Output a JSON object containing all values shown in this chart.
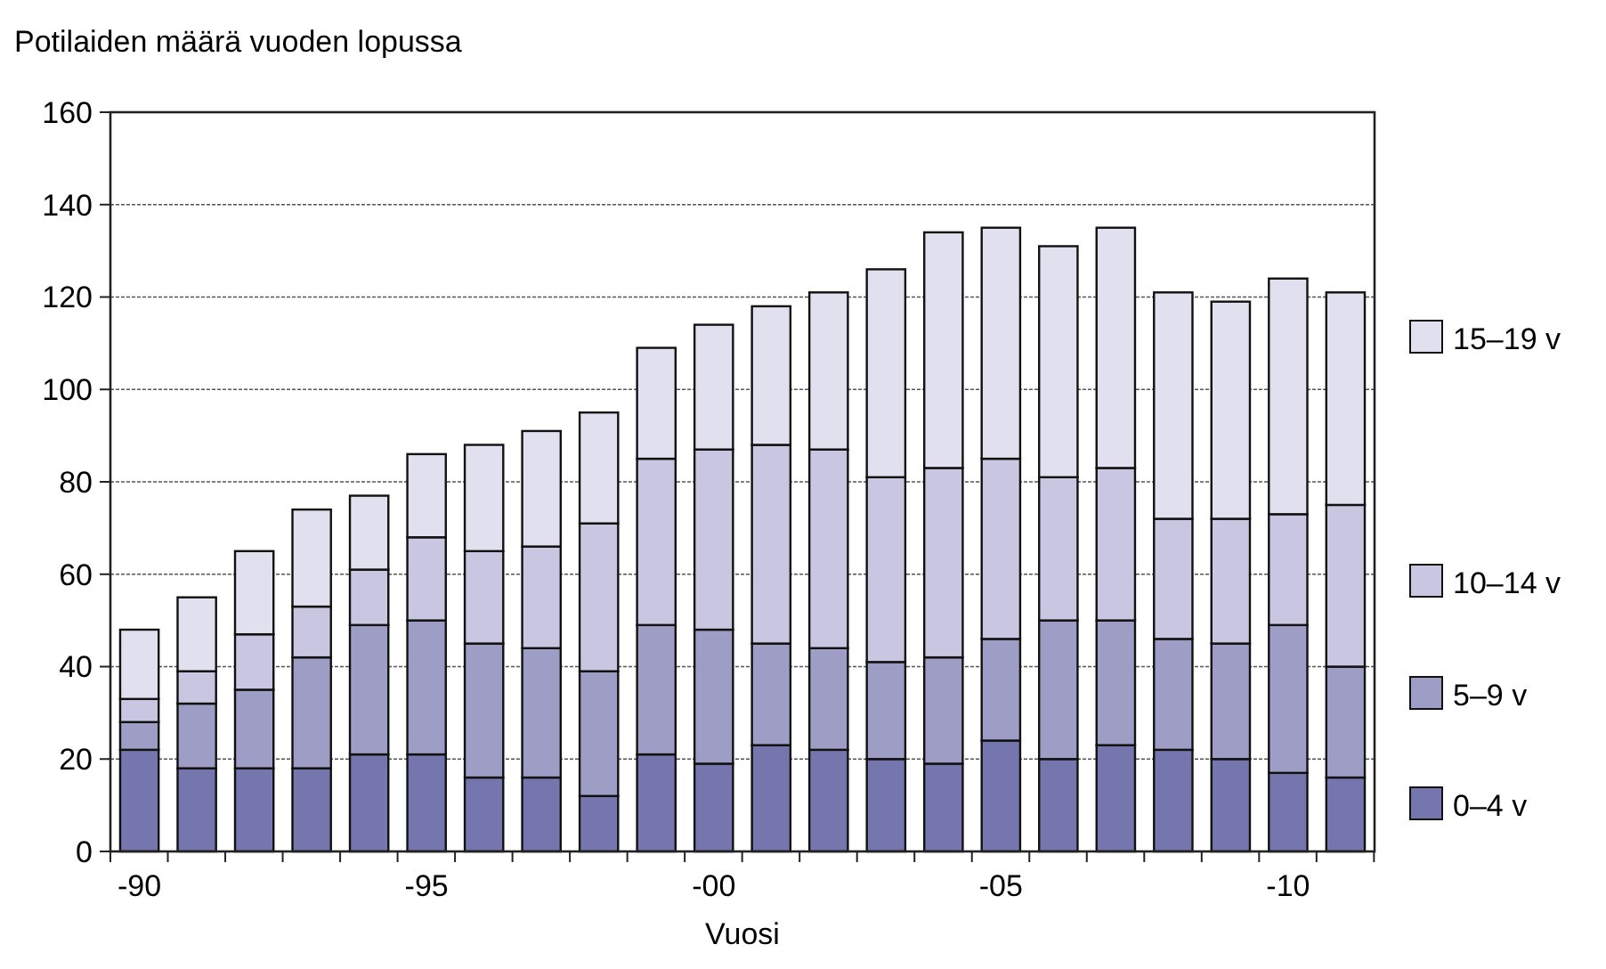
{
  "chart_data": {
    "type": "bar",
    "stacked": true,
    "ylabel": "Potilaiden määrä vuoden lopussa",
    "xlabel": "Vuosi",
    "categories": [
      "-90",
      null,
      null,
      null,
      null,
      "-95",
      null,
      null,
      null,
      null,
      "-00",
      null,
      null,
      null,
      null,
      "-05",
      null,
      null,
      null,
      null,
      "-10",
      null
    ],
    "series": [
      {
        "name": "0–4 v",
        "color": "#7476ad",
        "values": [
          22,
          18,
          18,
          18,
          21,
          21,
          16,
          16,
          12,
          21,
          19,
          23,
          22,
          20,
          19,
          24,
          20,
          23,
          22,
          20,
          17,
          16
        ]
      },
      {
        "name": "5–9 v",
        "color": "#9d9dc6",
        "values": [
          6,
          14,
          17,
          24,
          28,
          29,
          29,
          28,
          27,
          28,
          29,
          22,
          22,
          21,
          23,
          22,
          30,
          27,
          24,
          25,
          32,
          24
        ]
      },
      {
        "name": "10–14 v",
        "color": "#c8c6e0",
        "values": [
          5,
          7,
          12,
          11,
          12,
          18,
          20,
          22,
          32,
          36,
          39,
          43,
          43,
          40,
          41,
          39,
          31,
          33,
          26,
          27,
          24,
          35
        ]
      },
      {
        "name": "15–19 v",
        "color": "#e0e0ee",
        "values": [
          15,
          16,
          18,
          21,
          16,
          18,
          23,
          25,
          24,
          24,
          27,
          30,
          34,
          45,
          51,
          50,
          50,
          52,
          49,
          47,
          51,
          46
        ]
      }
    ],
    "ylim": [
      0,
      160
    ],
    "yticks": [
      0,
      20,
      40,
      60,
      80,
      100,
      120,
      140,
      160
    ],
    "grid": "y",
    "legend": "right"
  }
}
